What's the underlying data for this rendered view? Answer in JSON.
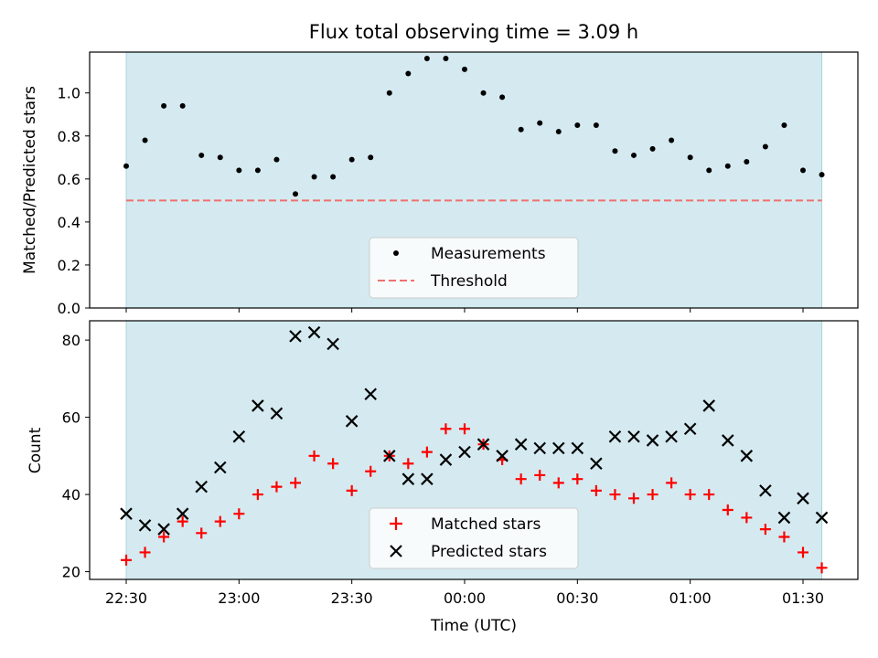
{
  "chart_data": [
    {
      "type": "scatter",
      "title": "Flux total observing time = 3.09 h",
      "xlabel": "",
      "ylabel": "Matched/Predicted stars",
      "ylim": [
        0,
        1.19
      ],
      "yticks": [
        "0.0",
        "0.2",
        "0.4",
        "0.6",
        "0.8",
        "1.0"
      ],
      "shaded_span": [
        "22:30",
        "01:35"
      ],
      "shade_color": "#d4eaf0",
      "legend_position": "lower center",
      "series": [
        {
          "name": "Measurements",
          "marker": "dot",
          "color": "#000000",
          "x": [
            "22:30",
            "22:35",
            "22:40",
            "22:45",
            "22:50",
            "22:55",
            "23:00",
            "23:05",
            "23:10",
            "23:15",
            "23:20",
            "23:25",
            "23:30",
            "23:35",
            "23:40",
            "23:45",
            "23:50",
            "23:55",
            "00:00",
            "00:05",
            "00:10",
            "00:15",
            "00:20",
            "00:25",
            "00:30",
            "00:35",
            "00:40",
            "00:45",
            "00:50",
            "00:55",
            "01:00",
            "01:05",
            "01:10",
            "01:15",
            "01:20",
            "01:25",
            "01:30",
            "01:35"
          ],
          "y": [
            0.66,
            0.78,
            0.94,
            0.94,
            0.71,
            0.7,
            0.64,
            0.64,
            0.69,
            0.53,
            0.61,
            0.61,
            0.69,
            0.7,
            1.0,
            1.09,
            1.16,
            1.16,
            1.11,
            1.0,
            0.98,
            0.83,
            0.86,
            0.82,
            0.85,
            0.85,
            0.73,
            0.71,
            0.74,
            0.78,
            0.7,
            0.64,
            0.66,
            0.68,
            0.75,
            0.85,
            0.64,
            0.62
          ]
        },
        {
          "name": "Threshold",
          "marker": "dashed-line",
          "color": "#f07070",
          "y_const": 0.5
        }
      ]
    },
    {
      "type": "scatter",
      "title": "",
      "xlabel": "Time (UTC)",
      "ylabel": "Count",
      "ylim": [
        18,
        85
      ],
      "yticks": [
        "20",
        "40",
        "60",
        "80"
      ],
      "xticks": [
        "22:30",
        "23:00",
        "23:30",
        "00:00",
        "00:30",
        "01:00",
        "01:30"
      ],
      "shaded_span": [
        "22:30",
        "01:35"
      ],
      "shade_color": "#d4eaf0",
      "legend_position": "lower center",
      "series": [
        {
          "name": "Matched stars",
          "marker": "plus",
          "color": "#ff0000",
          "x": [
            "22:30",
            "22:35",
            "22:40",
            "22:45",
            "22:50",
            "22:55",
            "23:00",
            "23:05",
            "23:10",
            "23:15",
            "23:20",
            "23:25",
            "23:30",
            "23:35",
            "23:40",
            "23:45",
            "23:50",
            "23:55",
            "00:00",
            "00:05",
            "00:10",
            "00:15",
            "00:20",
            "00:25",
            "00:30",
            "00:35",
            "00:40",
            "00:45",
            "00:50",
            "00:55",
            "01:00",
            "01:05",
            "01:10",
            "01:15",
            "01:20",
            "01:25",
            "01:30",
            "01:35"
          ],
          "y": [
            23,
            25,
            29,
            33,
            30,
            33,
            35,
            40,
            42,
            43,
            50,
            48,
            41,
            46,
            50,
            48,
            51,
            57,
            57,
            53,
            49,
            44,
            45,
            43,
            44,
            41,
            40,
            39,
            40,
            43,
            40,
            40,
            36,
            34,
            31,
            29,
            25,
            21
          ]
        },
        {
          "name": "Predicted stars",
          "marker": "x",
          "color": "#000000",
          "x": [
            "22:30",
            "22:35",
            "22:40",
            "22:45",
            "22:50",
            "22:55",
            "23:00",
            "23:05",
            "23:10",
            "23:15",
            "23:20",
            "23:25",
            "23:30",
            "23:35",
            "23:40",
            "23:45",
            "23:50",
            "23:55",
            "00:00",
            "00:05",
            "00:10",
            "00:15",
            "00:20",
            "00:25",
            "00:30",
            "00:35",
            "00:40",
            "00:45",
            "00:50",
            "00:55",
            "01:00",
            "01:05",
            "01:10",
            "01:15",
            "01:20",
            "01:25",
            "01:30",
            "01:35"
          ],
          "y": [
            35,
            32,
            31,
            35,
            42,
            47,
            55,
            63,
            61,
            81,
            82,
            79,
            59,
            66,
            50,
            44,
            44,
            49,
            51,
            53,
            50,
            53,
            52,
            52,
            52,
            48,
            55,
            55,
            54,
            55,
            57,
            63,
            54,
            50,
            41,
            34,
            39,
            34
          ]
        }
      ]
    }
  ]
}
